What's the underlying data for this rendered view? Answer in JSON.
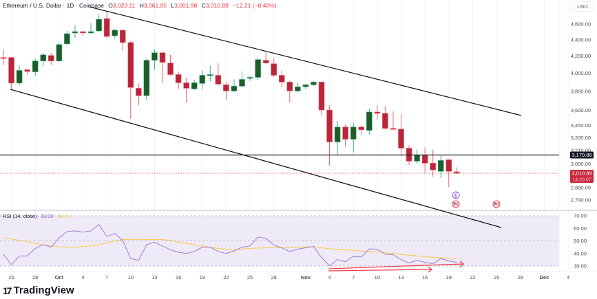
{
  "header": {
    "symbol": "Ethereum / U.S. Dollar · 1D · Coinbase",
    "o_label": "O",
    "o": "3,023.11",
    "h_label": "H",
    "h": "3,061.05",
    "l_label": "L",
    "l": "3,001.98",
    "c_label": "C",
    "c": "3,010.89",
    "change": "−12.21 (−0.40%)"
  },
  "currency": "USD",
  "price_labels": {
    "hline": "3,170.86",
    "last": "3,010.89",
    "countdown": "14:20:07"
  },
  "rsi": {
    "label": "RSI (14, close)",
    "value": "33.00",
    "ma_value": "36.10"
  },
  "footer": {
    "logo": "17",
    "brand": "TradingView"
  },
  "colors": {
    "up_fill": "#1e5c28",
    "up_border": "#3aa88a",
    "down_fill": "#b7263a",
    "down_border": "#ef5f6d",
    "rsi": "#7e57c2",
    "rsi_ma": "#f7c948",
    "accent_red": "#f23645"
  },
  "chart_data": [
    {
      "type": "candlestick",
      "title": "Ethereum / U.S. Dollar · 1D · Coinbase",
      "yscale": "log",
      "ylim": [
        2700,
        4800
      ],
      "y_ticks": [
        {
          "v": 4600,
          "label": "4,600.00"
        },
        {
          "v": 4400,
          "label": "4,400.00"
        },
        {
          "v": 4200,
          "label": "4,200.00"
        },
        {
          "v": 4000,
          "label": "4,000.00"
        },
        {
          "v": 3800,
          "label": "3,800.00"
        },
        {
          "v": 3600,
          "label": "3,600.00"
        },
        {
          "v": 3450,
          "label": "3,450.00"
        },
        {
          "v": 3330,
          "label": "3,330.00"
        },
        {
          "v": 3210,
          "label": "3,210.00"
        },
        {
          "v": 3090,
          "label": "3,090.00"
        },
        {
          "v": 2890,
          "label": "2,890.00"
        },
        {
          "v": 2790,
          "label": "2,790.00"
        }
      ],
      "x_ticks": [
        {
          "day": 1,
          "label": "25"
        },
        {
          "day": 4,
          "label": "28"
        },
        {
          "day": 7,
          "label": "Oct"
        },
        {
          "day": 10,
          "label": "4"
        },
        {
          "day": 13,
          "label": "7"
        },
        {
          "day": 16,
          "label": "10"
        },
        {
          "day": 19,
          "label": "13"
        },
        {
          "day": 22,
          "label": "16"
        },
        {
          "day": 25,
          "label": "19"
        },
        {
          "day": 28,
          "label": "22"
        },
        {
          "day": 31,
          "label": "25"
        },
        {
          "day": 34,
          "label": "28"
        },
        {
          "day": 38,
          "label": "Nov"
        },
        {
          "day": 41,
          "label": "4"
        },
        {
          "day": 44,
          "label": "7"
        },
        {
          "day": 47,
          "label": "10"
        },
        {
          "day": 50,
          "label": "13"
        },
        {
          "day": 53,
          "label": "16"
        },
        {
          "day": 56,
          "label": "19"
        },
        {
          "day": 59,
          "label": "22"
        },
        {
          "day": 62,
          "label": "25"
        },
        {
          "day": 65,
          "label": "28"
        },
        {
          "day": 68,
          "label": "Dec"
        },
        {
          "day": 71,
          "label": "4"
        }
      ],
      "ohlc": [
        [
          4183,
          4280,
          4090,
          4180
        ],
        [
          4183,
          4190,
          3826,
          3890
        ],
        [
          3890,
          4087,
          3863,
          4032
        ],
        [
          4040,
          4047,
          3977,
          4020
        ],
        [
          4016,
          4170,
          3970,
          4142
        ],
        [
          4142,
          4240,
          4079,
          4215
        ],
        [
          4207,
          4240,
          4095,
          4142
        ],
        [
          4142,
          4357,
          4134,
          4340
        ],
        [
          4348,
          4511,
          4332,
          4476
        ],
        [
          4485,
          4582,
          4424,
          4502
        ],
        [
          4502,
          4511,
          4450,
          4485
        ],
        [
          4485,
          4609,
          4468,
          4502
        ],
        [
          4511,
          4727,
          4494,
          4663
        ],
        [
          4672,
          4755,
          4424,
          4441
        ],
        [
          4450,
          4538,
          4415,
          4520
        ],
        [
          4520,
          4525,
          4265,
          4365
        ],
        [
          4365,
          4380,
          3514,
          3841
        ],
        [
          3833,
          3886,
          3652,
          3753
        ],
        [
          3753,
          4170,
          3702,
          4150
        ],
        [
          4150,
          4282,
          4039,
          4240
        ],
        [
          4240,
          4250,
          3893,
          4126
        ],
        [
          4118,
          4215,
          3970,
          3985
        ],
        [
          3985,
          4016,
          3826,
          3893
        ],
        [
          3893,
          3947,
          3681,
          3833
        ],
        [
          3826,
          3924,
          3815,
          3893
        ],
        [
          3886,
          4031,
          3826,
          3977
        ],
        [
          3985,
          4087,
          3908,
          3985
        ],
        [
          3977,
          4118,
          3863,
          3878
        ],
        [
          3871,
          3901,
          3710,
          3804
        ],
        [
          3804,
          3931,
          3790,
          3856
        ],
        [
          3856,
          4023,
          3841,
          3931
        ],
        [
          3947,
          3970,
          3916,
          3954
        ],
        [
          3954,
          4175,
          3924,
          4158
        ],
        [
          4150,
          4248,
          4102,
          4118
        ],
        [
          4110,
          4175,
          3960,
          3977
        ],
        [
          3977,
          4031,
          3841,
          3901
        ],
        [
          3901,
          3916,
          3681,
          3804
        ],
        [
          3804,
          3893,
          3789,
          3849
        ],
        [
          3849,
          3880,
          3826,
          3871
        ],
        [
          3871,
          3909,
          3856,
          3901
        ],
        [
          3901,
          3909,
          3548,
          3603
        ],
        [
          3603,
          3652,
          3080,
          3290
        ],
        [
          3290,
          3493,
          3177,
          3433
        ],
        [
          3433,
          3460,
          3246,
          3316
        ],
        [
          3316,
          3473,
          3195,
          3433
        ],
        [
          3433,
          3447,
          3361,
          3407
        ],
        [
          3400,
          3617,
          3361,
          3583
        ],
        [
          3583,
          3652,
          3507,
          3569
        ],
        [
          3569,
          3645,
          3407,
          3420
        ],
        [
          3420,
          3590,
          3407,
          3418
        ],
        [
          3413,
          3562,
          3165,
          3233
        ],
        [
          3233,
          3258,
          3080,
          3116
        ],
        [
          3116,
          3220,
          3092,
          3171
        ],
        [
          3171,
          3240,
          3016,
          3098
        ],
        [
          3098,
          3220,
          2981,
          3039
        ],
        [
          3027,
          3165,
          2970,
          3122
        ],
        [
          3128,
          3134,
          2895,
          3027
        ],
        [
          3023.11,
          3061.05,
          3001.98,
          3010.89
        ]
      ],
      "hline": 3170.86,
      "last": 3010.89
    },
    {
      "type": "line",
      "title": "RSI (14, close)",
      "ylim": [
        30,
        70
      ],
      "y_ticks": [
        {
          "v": 70,
          "label": "70.00"
        },
        {
          "v": 60,
          "label": "60.00"
        },
        {
          "v": 50,
          "label": "50.00"
        },
        {
          "v": 40,
          "label": "40.00"
        },
        {
          "v": 30,
          "label": "30.00"
        }
      ],
      "series": [
        {
          "name": "RSI",
          "values": [
            39.4,
            31,
            38,
            38,
            44,
            47,
            45,
            52.5,
            57.4,
            58,
            57,
            58,
            63,
            53.6,
            56,
            50.3,
            36,
            34.5,
            47,
            49,
            46,
            43,
            41,
            40,
            41.6,
            45,
            45,
            41.6,
            40,
            42,
            45,
            46,
            53,
            52,
            46.7,
            44.5,
            41.6,
            43.4,
            44.5,
            45.6,
            36.7,
            30,
            35.2,
            33.4,
            37.7,
            37.2,
            43.6,
            43.4,
            39.4,
            39,
            35,
            32.5,
            34.5,
            33,
            31.8,
            36,
            34,
            33
          ]
        },
        {
          "name": "RSI-based MA",
          "values": [
            52.5,
            51.5,
            50.5,
            49.5,
            48,
            47,
            46,
            45.3,
            45,
            45,
            45.5,
            46,
            47,
            48.5,
            50,
            51,
            51.2,
            51.2,
            51,
            51,
            51,
            50.5,
            49,
            48,
            47,
            46,
            45,
            44,
            43.5,
            43.2,
            43.5,
            44,
            44.3,
            44.5,
            44.5,
            44.6,
            44.8,
            45,
            45.3,
            45.4,
            44.5,
            43.8,
            43.3,
            43,
            42.5,
            42,
            41.6,
            41.2,
            40.5,
            40,
            39.2,
            38.6,
            38,
            37.5,
            37,
            36.5,
            36.3,
            36.1
          ]
        }
      ]
    }
  ]
}
